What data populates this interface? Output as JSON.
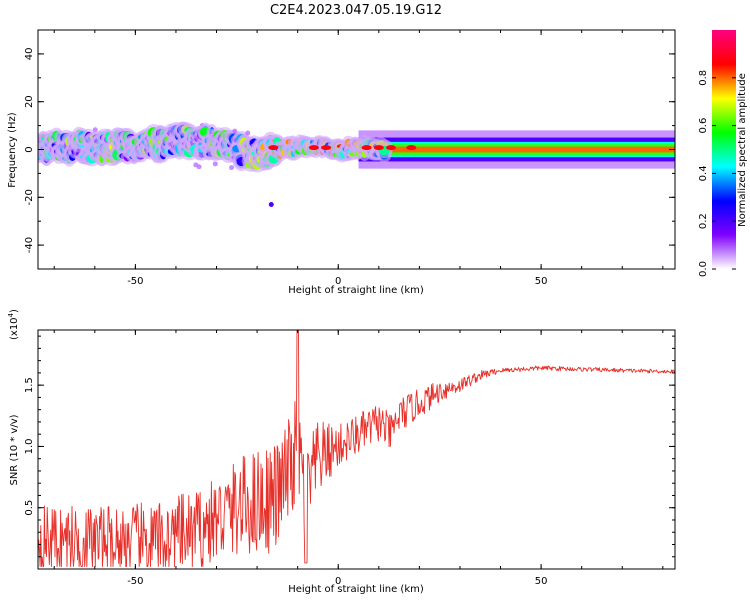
{
  "title": "C2E4.2023.047.05.19.G12",
  "colors": {
    "snr_line": "#e8302a",
    "axis": "#000000",
    "colormap": [
      "#ffffff",
      "#7f00ff",
      "#0000ff",
      "#00ffff",
      "#00ff00",
      "#ffff00",
      "#ff0000",
      "#ff0080"
    ]
  },
  "chart_data": [
    {
      "type": "heatmap",
      "title": "C2E4.2023.047.05.19.G12",
      "xlabel": "Height of straight line (km)",
      "ylabel": "Frequency (Hz)",
      "xlim": [
        -74,
        83
      ],
      "ylim": [
        -50,
        50
      ],
      "x_ticks": [
        -50,
        0,
        50
      ],
      "y_ticks": [
        -40,
        -20,
        0,
        20,
        40
      ],
      "colorbar": {
        "label": "Normalized spectral amplitude",
        "range": [
          0,
          1
        ],
        "ticks": [
          "0.0",
          "0.2",
          "0.4",
          "0.6",
          "0.8"
        ]
      },
      "band_center_hz": [
        {
          "x": -72,
          "f": 1
        },
        {
          "x": -60,
          "f": 1
        },
        {
          "x": -45,
          "f": 2
        },
        {
          "x": -38,
          "f": 4
        },
        {
          "x": -30,
          "f": 2
        },
        {
          "x": -20,
          "f": -2
        },
        {
          "x": -15,
          "f": 0
        },
        {
          "x": -10,
          "f": 1
        },
        {
          "x": -5,
          "f": 1
        },
        {
          "x": 0,
          "f": 0
        },
        {
          "x": 15,
          "f": 0
        },
        {
          "x": 83,
          "f": 0
        }
      ]
    },
    {
      "type": "line",
      "xlabel": "Height of straight line (km)",
      "ylabel": "SNR (10 * v/v)",
      "y_multiplier": "(x10",
      "y_multiplier_exp": "4",
      "y_multiplier_close": ")",
      "xlim": [
        -74,
        83
      ],
      "ylim": [
        0,
        1.95
      ],
      "x_ticks": [
        -50,
        0,
        50
      ],
      "y_ticks": [
        "0.5",
        "1.0",
        "1.5"
      ],
      "y_tick_values": [
        0.5,
        1.0,
        1.5
      ],
      "series": [
        {
          "trend_x": [
            -74,
            -60,
            -45,
            -35,
            -30,
            -25,
            -20,
            -15,
            -12,
            -10,
            -8,
            -5,
            0,
            5,
            10,
            13,
            15,
            20,
            25,
            30,
            35,
            40,
            50,
            60,
            70,
            83
          ],
          "trend_y": [
            0.25,
            0.22,
            0.22,
            0.3,
            0.4,
            0.5,
            0.55,
            0.6,
            0.8,
            1.0,
            0.6,
            0.9,
            1.0,
            1.1,
            1.2,
            1.1,
            1.25,
            1.35,
            1.45,
            1.5,
            1.58,
            1.62,
            1.64,
            1.63,
            1.62,
            1.61
          ],
          "noise_x": [
            -74,
            -30,
            -20,
            -10,
            0,
            15,
            30,
            40,
            83
          ],
          "noise_amp": [
            0.28,
            0.35,
            0.45,
            0.45,
            0.18,
            0.15,
            0.06,
            0.02,
            0.015
          ]
        }
      ]
    }
  ]
}
